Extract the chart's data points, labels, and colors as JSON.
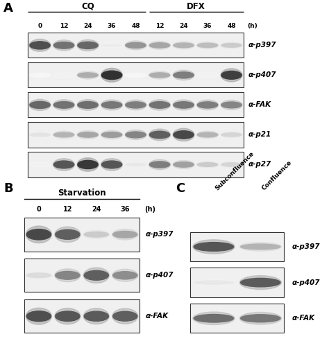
{
  "background_color": "#ffffff",
  "panel_A": {
    "label": "A",
    "title_CQ": "CQ",
    "title_DFX": "DFX",
    "timepoints": [
      "0",
      "12",
      "24",
      "36",
      "48",
      "12",
      "24",
      "36",
      "48"
    ],
    "unit": "(h)",
    "blots": [
      {
        "label": "α-p397",
        "bands": [
          0.75,
          0.6,
          0.65,
          0.08,
          0.45,
          0.38,
          0.32,
          0.28,
          0.22
        ]
      },
      {
        "label": "α-p407",
        "bands": [
          0.04,
          0.06,
          0.35,
          0.88,
          0.04,
          0.35,
          0.55,
          0.06,
          0.82
        ]
      },
      {
        "label": "α-FAK",
        "bands": [
          0.65,
          0.6,
          0.62,
          0.58,
          0.55,
          0.6,
          0.58,
          0.55,
          0.52
        ]
      },
      {
        "label": "α-p21",
        "bands": [
          0.12,
          0.32,
          0.38,
          0.42,
          0.52,
          0.68,
          0.78,
          0.32,
          0.18
        ]
      },
      {
        "label": "α-p27",
        "bands": [
          0.06,
          0.72,
          0.85,
          0.72,
          0.1,
          0.55,
          0.4,
          0.22,
          0.18
        ]
      }
    ],
    "n_cq": 5,
    "n_dfx": 4
  },
  "panel_B": {
    "label": "B",
    "title": "Starvation",
    "timepoints": [
      "0",
      "12",
      "24",
      "36"
    ],
    "unit": "(h)",
    "blots": [
      {
        "label": "α-p397",
        "bands": [
          0.78,
          0.68,
          0.22,
          0.38
        ]
      },
      {
        "label": "α-p407",
        "bands": [
          0.15,
          0.52,
          0.68,
          0.48
        ]
      },
      {
        "label": "α-FAK",
        "bands": [
          0.75,
          0.72,
          0.7,
          0.68
        ]
      }
    ]
  },
  "panel_C": {
    "label": "C",
    "columns": [
      "Subconfluence",
      "Confluence"
    ],
    "blots": [
      {
        "label": "α-p397",
        "bands": [
          0.72,
          0.32
        ]
      },
      {
        "label": "α-p407",
        "bands": [
          0.1,
          0.7
        ]
      },
      {
        "label": "α-FAK",
        "bands": [
          0.62,
          0.58
        ]
      }
    ]
  }
}
